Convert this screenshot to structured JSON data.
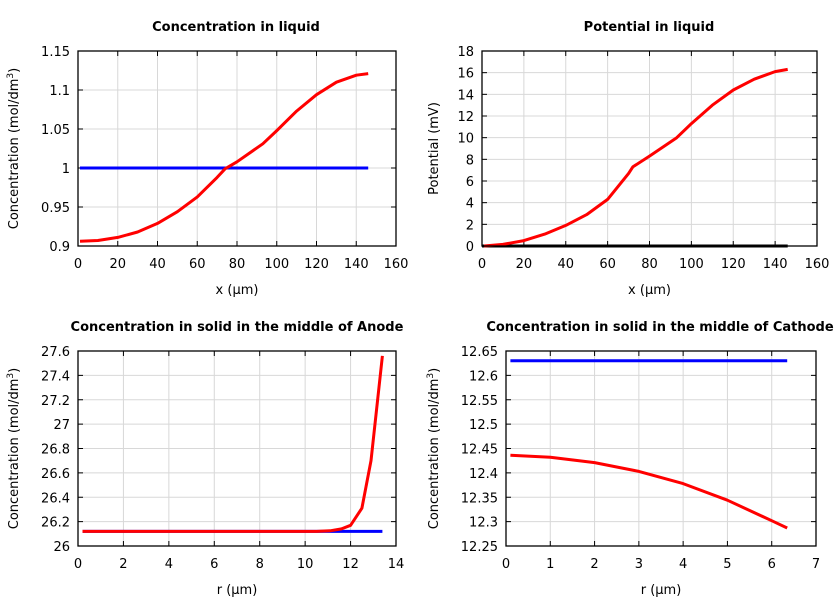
{
  "chart_data": [
    {
      "type": "line",
      "title": "Concentration in liquid",
      "xlabel": "x (µm)",
      "ylabel": "Concentration (mol/dm",
      "ylabel_sup": "3",
      "ylabel_end": ")",
      "xlim": [
        0,
        160
      ],
      "ylim": [
        0.9,
        1.15
      ],
      "xticks": [
        "0",
        "20",
        "40",
        "60",
        "80",
        "100",
        "120",
        "140",
        "160"
      ],
      "yticks": [
        "0.9",
        "0.95",
        "1",
        "1.05",
        "1.1",
        "1.15"
      ],
      "grid": true,
      "series": [
        {
          "color": "#0000ff",
          "x": [
            1,
            146
          ],
          "y": [
            1,
            1
          ]
        },
        {
          "color": "#ff0000",
          "x": [
            1,
            10,
            20,
            30,
            40,
            50,
            60,
            70,
            74,
            80,
            93,
            100,
            110,
            120,
            130,
            140,
            146
          ],
          "y": [
            0.906,
            0.907,
            0.911,
            0.918,
            0.929,
            0.944,
            0.963,
            0.988,
            0.999,
            1.008,
            1.031,
            1.048,
            1.073,
            1.094,
            1.11,
            1.119,
            1.121
          ]
        }
      ]
    },
    {
      "type": "line",
      "title": "Potential in liquid",
      "xlabel": "x (µm)",
      "ylabel": "Potential (mV)",
      "xlim": [
        0,
        160
      ],
      "ylim": [
        0,
        18
      ],
      "xticks": [
        "0",
        "20",
        "40",
        "60",
        "80",
        "100",
        "120",
        "140",
        "160"
      ],
      "yticks": [
        "0",
        "2",
        "4",
        "6",
        "8",
        "10",
        "12",
        "14",
        "16",
        "18"
      ],
      "grid": true,
      "series": [
        {
          "color": "#000000",
          "x": [
            0,
            146
          ],
          "y": [
            0,
            0
          ]
        },
        {
          "color": "#ff0000",
          "x": [
            1,
            10,
            20,
            30,
            40,
            50,
            60,
            70,
            72,
            80,
            93,
            100,
            110,
            120,
            130,
            140,
            146
          ],
          "y": [
            0,
            0.15,
            0.5,
            1.1,
            1.9,
            2.9,
            4.3,
            6.7,
            7.3,
            8.3,
            10,
            11.3,
            13,
            14.4,
            15.4,
            16.1,
            16.3
          ]
        }
      ]
    },
    {
      "type": "line",
      "title": "Concentration in solid in the middle of Anode",
      "xlabel": "r (µm)",
      "ylabel": "Concentration (mol/dm",
      "ylabel_sup": "3",
      "ylabel_end": ")",
      "xlim": [
        0,
        14
      ],
      "ylim": [
        26,
        27.6
      ],
      "xticks": [
        "0",
        "2",
        "4",
        "6",
        "8",
        "10",
        "12",
        "14"
      ],
      "yticks": [
        "26",
        "26.2",
        "26.4",
        "26.6",
        "26.8",
        "27",
        "27.2",
        "27.4",
        "27.6"
      ],
      "grid": true,
      "series": [
        {
          "color": "#0000ff",
          "x": [
            0.2,
            13.4
          ],
          "y": [
            26.12,
            26.12
          ]
        },
        {
          "color": "#ff0000",
          "x": [
            0.2,
            10.5,
            11.1,
            11.6,
            12.0,
            12.5,
            12.9,
            13.4
          ],
          "y": [
            26.12,
            26.12,
            26.125,
            26.14,
            26.17,
            26.31,
            26.7,
            27.56
          ]
        }
      ]
    },
    {
      "type": "line",
      "title": "Concentration in solid in the middle of Cathode",
      "xlabel": "r (µm)",
      "ylabel": "Concentration (mol/dm",
      "ylabel_sup": "3",
      "ylabel_end": ")",
      "xlim": [
        0,
        7
      ],
      "ylim": [
        12.25,
        12.65
      ],
      "xticks": [
        "0",
        "1",
        "2",
        "3",
        "4",
        "5",
        "6",
        "7"
      ],
      "yticks": [
        "12.25",
        "12.3",
        "12.35",
        "12.4",
        "12.45",
        "12.5",
        "12.55",
        "12.6",
        "12.65"
      ],
      "grid": true,
      "series": [
        {
          "color": "#0000ff",
          "x": [
            0.1,
            6.35
          ],
          "y": [
            12.63,
            12.63
          ]
        },
        {
          "color": "#ff0000",
          "x": [
            0.1,
            1,
            2,
            3,
            4,
            5,
            6,
            6.35
          ],
          "y": [
            12.436,
            12.432,
            12.421,
            12.403,
            12.378,
            12.344,
            12.302,
            12.287
          ]
        }
      ]
    }
  ]
}
